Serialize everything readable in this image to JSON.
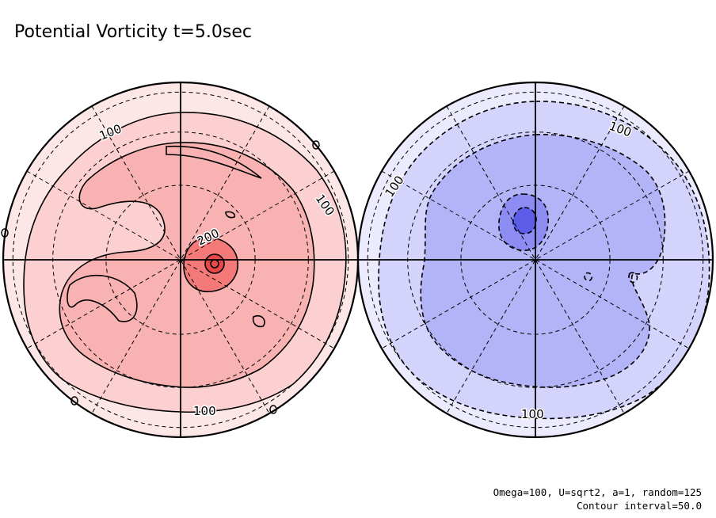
{
  "title": "Potential Vorticity t=5.0sec",
  "caption": {
    "line1": "Omega=100, U=sqrt2, a=1, random=125",
    "line2": "Contour interval=50.0"
  },
  "colors": {
    "positive_levels": [
      "#fde6e6",
      "#fcd0d0",
      "#f9b2b2",
      "#f47a7a",
      "#e84848"
    ],
    "negative_levels": [
      "#ebebfd",
      "#d3d3fb",
      "#b3b3f8",
      "#8c8cf3",
      "#5c5ce8"
    ],
    "contour": "#000000",
    "grid": "#000000"
  },
  "chart_data": {
    "type": "heatmap",
    "variable": "Potential Vorticity",
    "time_sec": 5.0,
    "contour_interval": 50.0,
    "projection": "orthographic hemispheres",
    "grid": true,
    "panels": [
      {
        "name": "",
        "sign": "positive",
        "contour_labels": [
          "100",
          "100",
          "100",
          "200"
        ],
        "max_level": 250
      },
      {
        "name": "",
        "sign": "negative",
        "contour_labels": [
          "100",
          "100",
          "100"
        ],
        "min_level": -250
      }
    ]
  }
}
